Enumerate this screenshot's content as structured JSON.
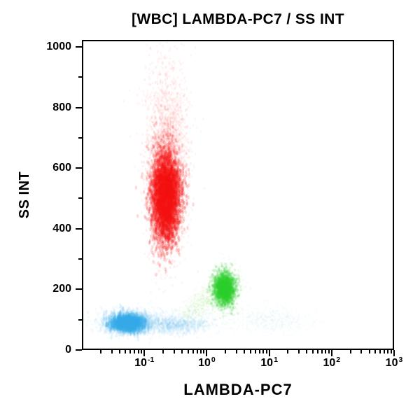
{
  "chart_data": {
    "type": "scatter",
    "subtype": "flow-cytometry-density-dot-plot",
    "title": "[WBC] LAMBDA-PC7 / SS INT",
    "xlabel": "LAMBDA-PC7",
    "ylabel": "SS INT",
    "x_scale": "log",
    "x_log10_range": [
      -2,
      3
    ],
    "x_tick_base": "10",
    "x_major_ticks": [
      {
        "exponent": "-1",
        "log10": -1
      },
      {
        "exponent": "0",
        "log10": 0
      },
      {
        "exponent": "1",
        "log10": 1
      },
      {
        "exponent": "2",
        "log10": 2
      },
      {
        "exponent": "3",
        "log10": 3
      }
    ],
    "y_scale": "linear",
    "y_range": [
      0,
      1023
    ],
    "y_major_ticks": [
      0,
      200,
      400,
      600,
      800,
      1000
    ],
    "y_minor_ticks": [
      100,
      300,
      500,
      700,
      900
    ],
    "grid": false,
    "legend": false,
    "background_color": "#ffffff",
    "frame_color": "#000000",
    "populations": [
      {
        "name": "granulocytes-core",
        "shape": "gauss",
        "color": "#f01010",
        "approx_x": 0.21,
        "approx_ss": 505,
        "n": 5200,
        "log10x": -0.665,
        "sd_log10x": 0.115,
        "ss": 505,
        "sd_ss": 72,
        "alpha": 0.16,
        "radius": 1.7,
        "stretch_y": 1.7
      },
      {
        "name": "granulocytes-haze",
        "shape": "gauss",
        "color": "#fa2020",
        "approx_x": 0.22,
        "approx_ss": 630,
        "n": 3000,
        "log10x": -0.65,
        "sd_log10x": 0.165,
        "ss": 630,
        "sd_ss": 145,
        "alpha": 0.045,
        "radius": 1.4,
        "stretch_y": 1.4
      },
      {
        "name": "lymphocytes-spread",
        "shape": "gauss",
        "color": "#4ab2e4",
        "approx_x": 0.07,
        "approx_ss": 88,
        "n": 1100,
        "log10x": -1.15,
        "sd_log10x": 0.3,
        "ss": 88,
        "sd_ss": 20,
        "alpha": 0.05,
        "radius": 1.5,
        "stretch_y": 1.3
      },
      {
        "name": "lymphocytes-core",
        "shape": "gauss",
        "color": "#35ace6",
        "approx_x": 0.055,
        "approx_ss": 85,
        "n": 1900,
        "log10x": -1.28,
        "sd_log10x": 0.14,
        "ss": 85,
        "sd_ss": 14,
        "alpha": 0.13,
        "radius": 1.7,
        "stretch_y": 2.2
      },
      {
        "name": "lymphocyte-trail",
        "shape": "gauss",
        "color": "#55b9e8",
        "approx_x": 0.3,
        "approx_ss": 78,
        "n": 800,
        "log10x": -0.52,
        "sd_log10x": 0.24,
        "ss": 78,
        "sd_ss": 15,
        "alpha": 0.05,
        "radius": 1.5,
        "stretch_y": 1.3
      },
      {
        "name": "trail-faint-mid",
        "shape": "gauss",
        "color": "#7fc8ea",
        "approx_x": 0.8,
        "approx_ss": 95,
        "n": 220,
        "log10x": -0.1,
        "sd_log10x": 0.2,
        "ss": 95,
        "sd_ss": 24,
        "alpha": 0.035,
        "radius": 1.4,
        "stretch_y": 1.0
      },
      {
        "name": "debris-green-streak",
        "shape": "streak",
        "color": "#78d24c",
        "p1": {
          "log10x": -0.35,
          "ss": 118
        },
        "p2": {
          "log10x": 0.12,
          "ss": 180
        },
        "n": 420,
        "sd_log10x": 0.1,
        "sd_ss": 22,
        "alpha": 0.05,
        "radius": 1.4,
        "stretch_y": 1.0
      },
      {
        "name": "monocytes-halo",
        "shape": "gauss",
        "color": "#49cf35",
        "approx_x": 1.9,
        "approx_ss": 200,
        "n": 550,
        "log10x": 0.28,
        "sd_log10x": 0.14,
        "ss": 200,
        "sd_ss": 42,
        "alpha": 0.05,
        "radius": 1.4,
        "stretch_y": 1.0
      },
      {
        "name": "monocytes-core",
        "shape": "gauss",
        "color": "#2ecc2e",
        "approx_x": 1.9,
        "approx_ss": 200,
        "n": 2300,
        "log10x": 0.28,
        "sd_log10x": 0.085,
        "ss": 200,
        "sd_ss": 27,
        "alpha": 0.14,
        "radius": 1.7,
        "stretch_y": 1.2
      },
      {
        "name": "right-faint-haze",
        "shape": "gauss",
        "color": "#8ccbe8",
        "approx_x": 11,
        "approx_ss": 95,
        "n": 520,
        "log10x": 1.05,
        "sd_log10x": 0.32,
        "ss": 95,
        "sd_ss": 22,
        "alpha": 0.04,
        "radius": 1.4,
        "stretch_y": 1.0
      }
    ]
  }
}
